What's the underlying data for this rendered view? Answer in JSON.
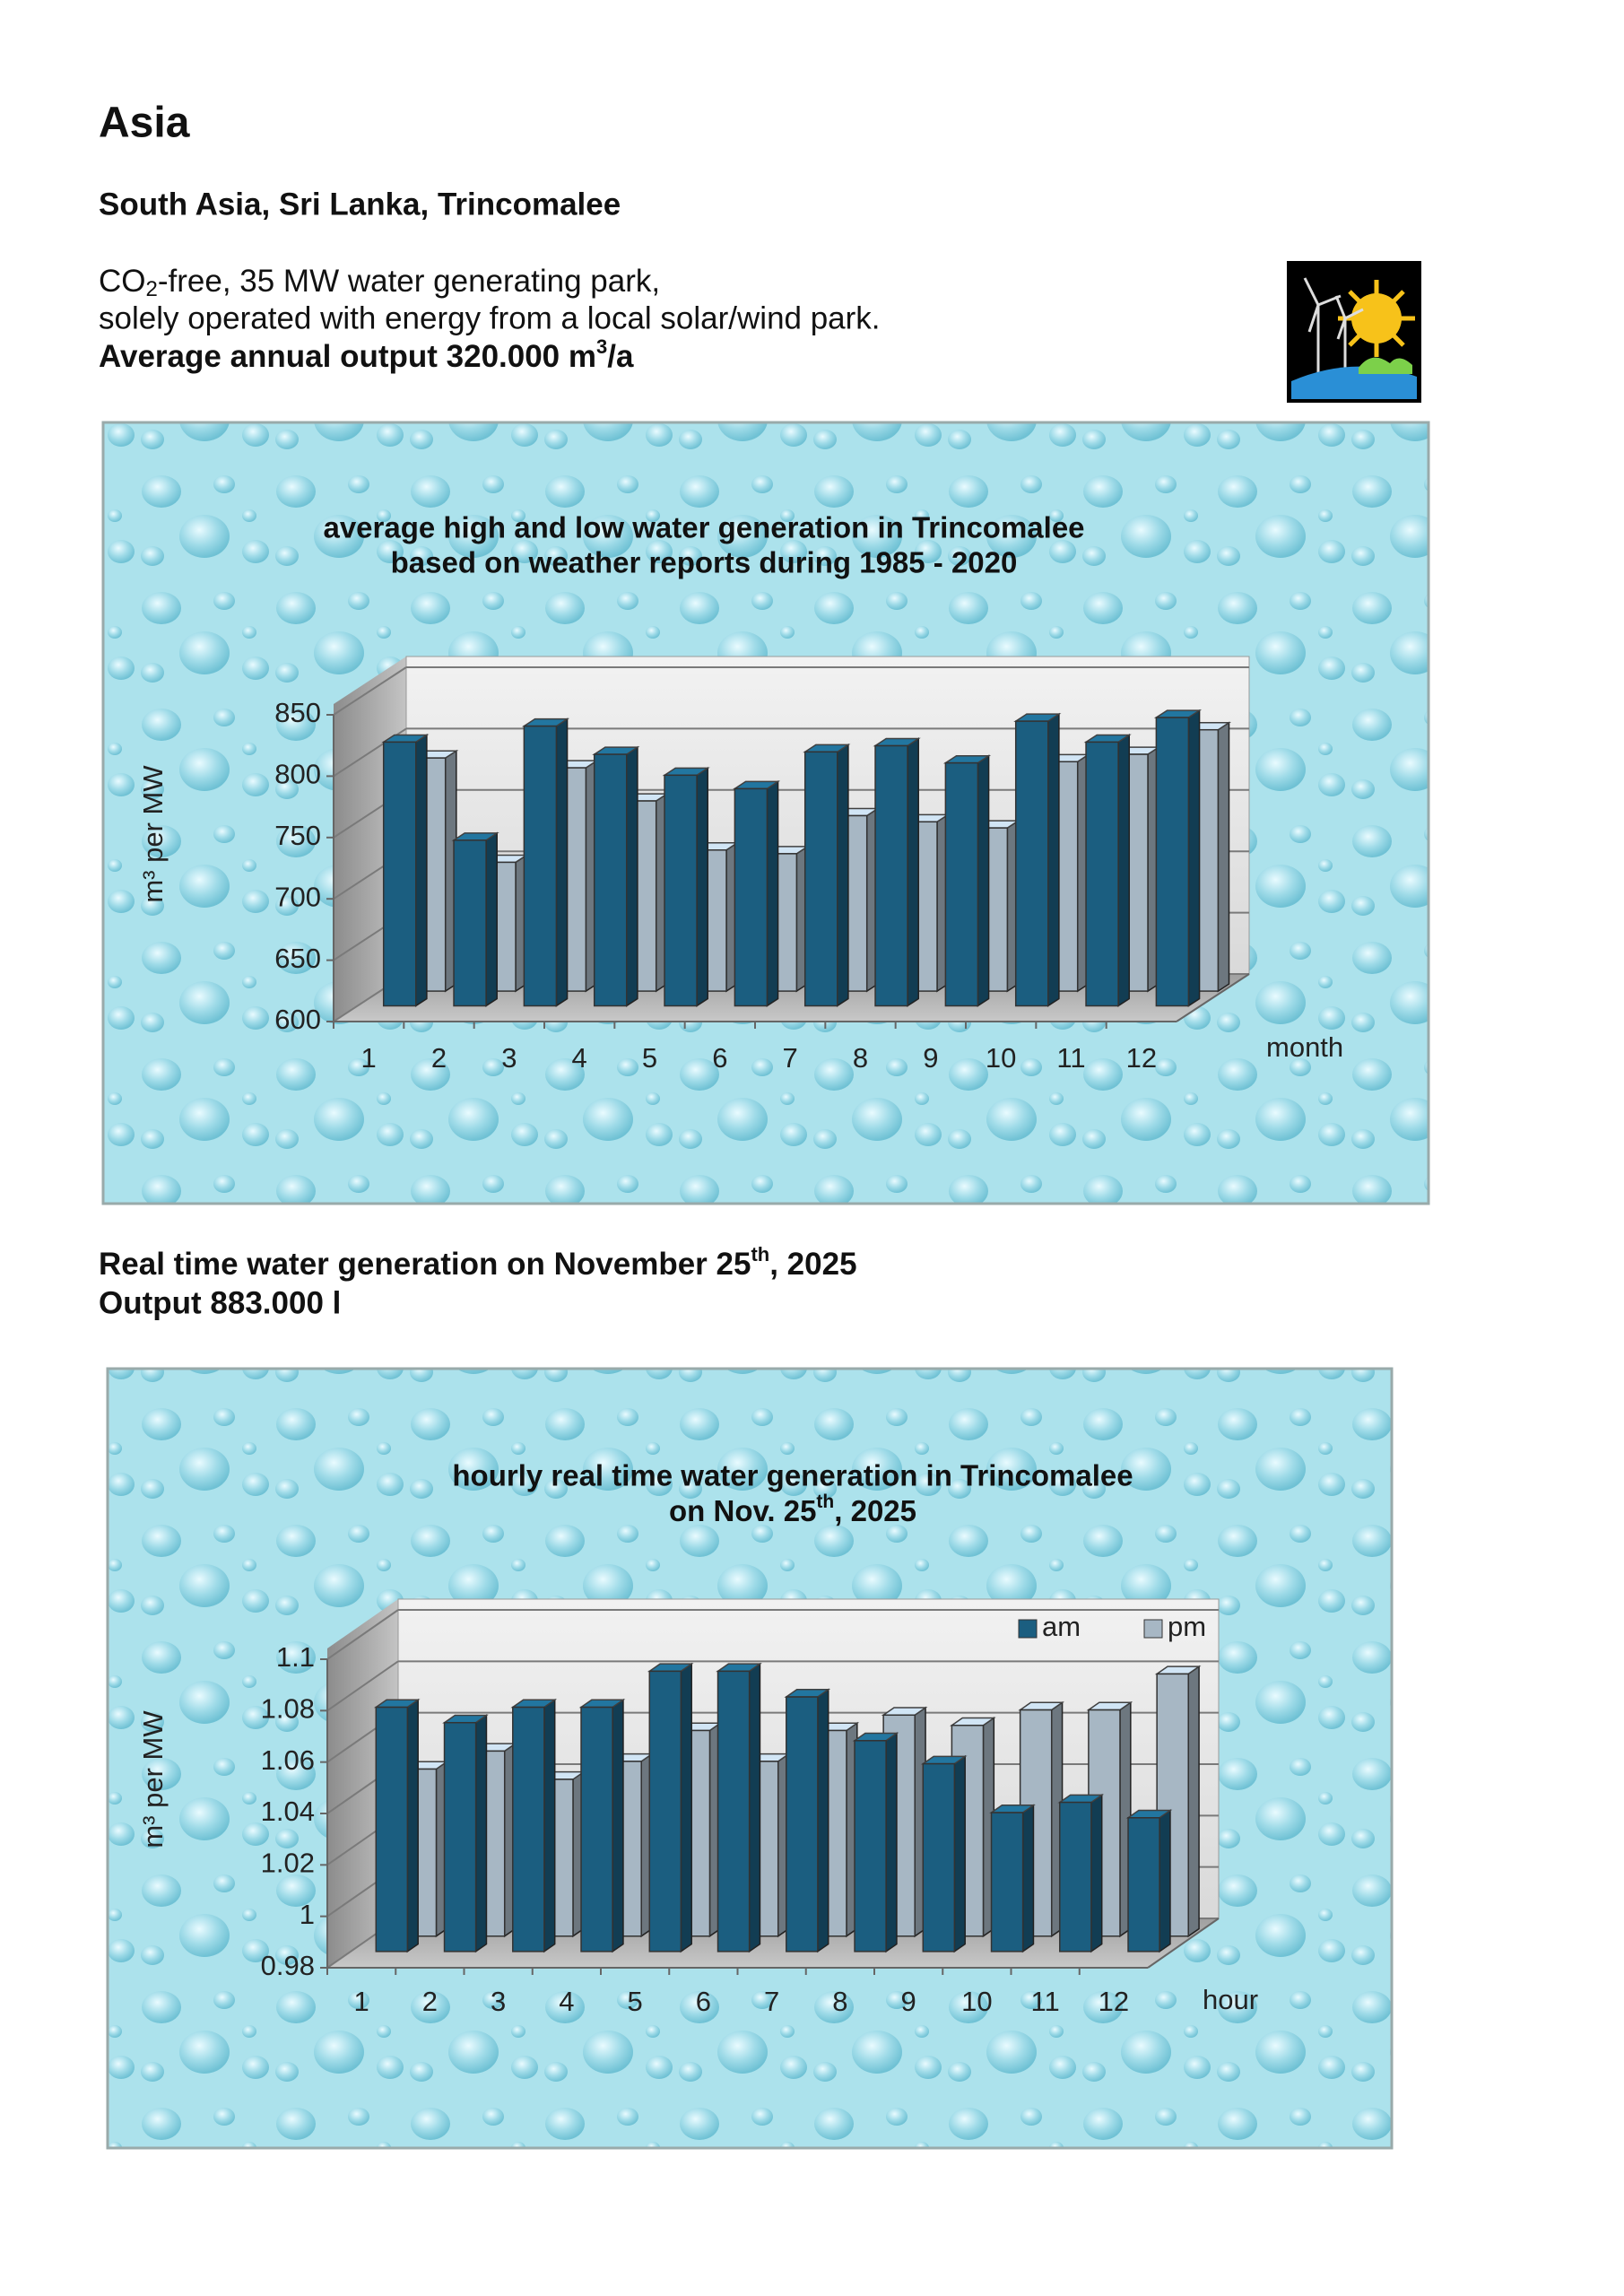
{
  "heading": "Asia",
  "location": "South Asia, Sri Lanka, Trincomalee",
  "description": {
    "line1": [
      "CO",
      "2",
      "-free, 35 MW water generating park,"
    ],
    "line2": "solely operated with energy from a local solar/wind park.",
    "line3": [
      "Average annual output 320.000 m",
      "3",
      "/a"
    ]
  },
  "realtime": {
    "line1": [
      "Real time water generation on November 25",
      "th",
      ", 2025"
    ],
    "line2": "Output 883.000 l"
  },
  "chart_data": [
    {
      "type": "bar",
      "title": [
        "average high and low water generation in Trincomalee",
        "based on weather reports during 1985 - 2020"
      ],
      "y_label": "m³ per MW",
      "x_label": "month",
      "categories": [
        1,
        2,
        3,
        4,
        5,
        6,
        7,
        8,
        9,
        10,
        11,
        12
      ],
      "series": [
        {
          "color": "#1b5e80",
          "values": [
            815,
            735,
            828,
            805,
            788,
            777,
            807,
            812,
            798,
            832,
            815,
            835
          ]
        },
        {
          "color": "#a7b7c4",
          "values": [
            790,
            705,
            782,
            755,
            715,
            712,
            743,
            738,
            733,
            787,
            793,
            813
          ]
        }
      ],
      "ylim": [
        600,
        850
      ],
      "yticks": [
        600,
        650,
        700,
        750,
        800,
        850
      ],
      "grid": true
    },
    {
      "type": "bar",
      "title": [
        [
          "hourly real time water generation in Trincomalee"
        ],
        [
          "on Nov. 25",
          "th",
          ", 2025"
        ]
      ],
      "y_label": "m³ per MW",
      "x_label": "hour",
      "categories": [
        1,
        2,
        3,
        4,
        5,
        6,
        7,
        8,
        9,
        10,
        11,
        12
      ],
      "series": [
        {
          "name": "am",
          "color": "#1b5e80",
          "values": [
            1.075,
            1.069,
            1.075,
            1.075,
            1.089,
            1.089,
            1.079,
            1.062,
            1.053,
            1.034,
            1.038,
            1.032
          ]
        },
        {
          "name": "pm",
          "color": "#a7b7c4",
          "values": [
            1.045,
            1.052,
            1.041,
            1.048,
            1.06,
            1.048,
            1.06,
            1.066,
            1.062,
            1.068,
            1.068,
            1.082
          ]
        }
      ],
      "ylim": [
        0.98,
        1.1
      ],
      "yticks": [
        0.98,
        1,
        1.02,
        1.04,
        1.06,
        1.08,
        1.1
      ],
      "grid": true,
      "legend": "top-right"
    }
  ]
}
